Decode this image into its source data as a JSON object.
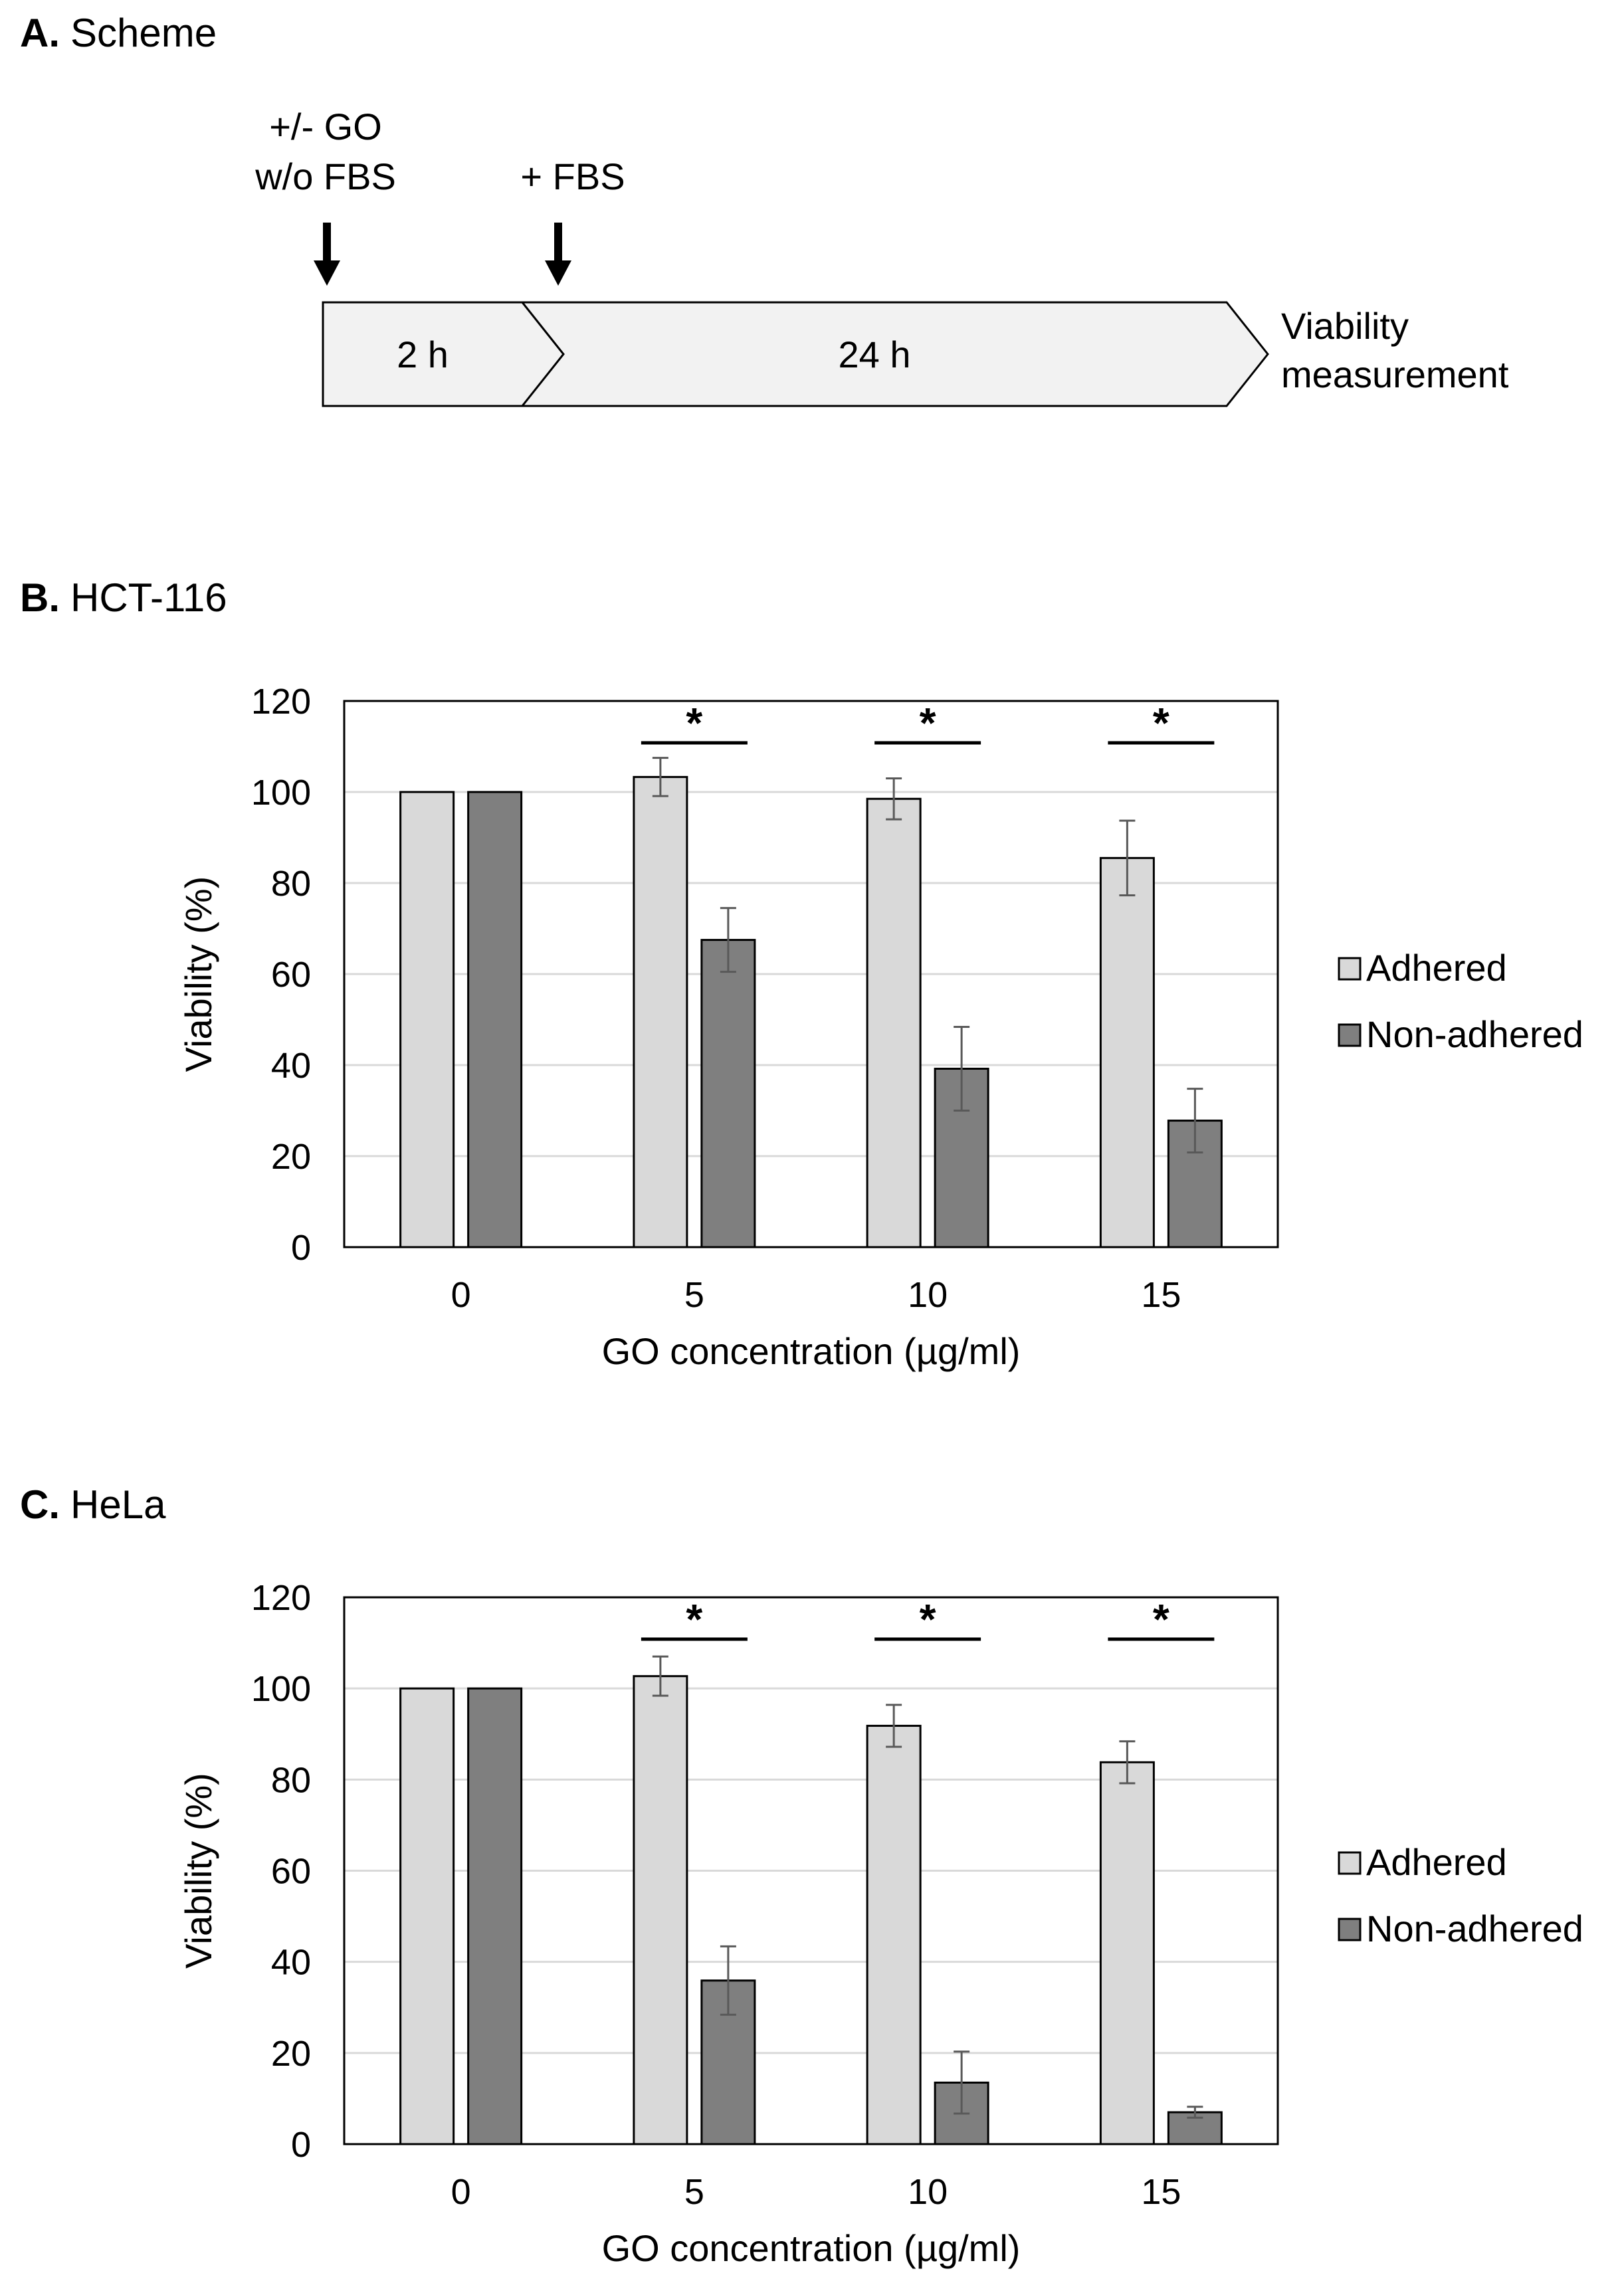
{
  "panel_a": {
    "letter": "A.",
    "title": "Scheme",
    "step1_line1": "+/- GO",
    "step1_line2": "w/o FBS",
    "step2": "+ FBS",
    "phase1": "2 h",
    "phase2": "24 h",
    "end_line1": "Viability",
    "end_line2": "measurement"
  },
  "chart_data": [
    {
      "type": "bar",
      "panel_letter": "B.",
      "title": "HCT-116",
      "categories": [
        "0",
        "5",
        "10",
        "15"
      ],
      "series": [
        {
          "name": "Adhered",
          "color": "#d9d9d9",
          "values": [
            100,
            103.3,
            98.5,
            85.5
          ],
          "errors": [
            0,
            4.2,
            4.5,
            8.2
          ]
        },
        {
          "name": "Non-adhered",
          "color": "#7f7f7f",
          "values": [
            100,
            67.5,
            39.2,
            27.8
          ],
          "errors": [
            0,
            7,
            9.2,
            7
          ]
        }
      ],
      "significance": [
        {
          "category": "5",
          "label": "*"
        },
        {
          "category": "10",
          "label": "*"
        },
        {
          "category": "15",
          "label": "*"
        }
      ],
      "xlabel": "GO concentration (µg/ml)",
      "ylabel": "Viability (%)",
      "ylim": [
        0,
        120
      ],
      "yticks": [
        "0",
        "20",
        "40",
        "60",
        "80",
        "100",
        "120"
      ],
      "grid": true,
      "legend": "right"
    },
    {
      "type": "bar",
      "panel_letter": "C.",
      "title": "HeLa",
      "categories": [
        "0",
        "5",
        "10",
        "15"
      ],
      "series": [
        {
          "name": "Adhered",
          "color": "#d9d9d9",
          "values": [
            100,
            102.7,
            91.8,
            83.8
          ],
          "errors": [
            0,
            4.3,
            4.6,
            4.6
          ]
        },
        {
          "name": "Non-adhered",
          "color": "#7f7f7f",
          "values": [
            100,
            35.9,
            13.5,
            7
          ],
          "errors": [
            0,
            7.5,
            6.8,
            1.2
          ]
        }
      ],
      "significance": [
        {
          "category": "5",
          "label": "*"
        },
        {
          "category": "10",
          "label": "*"
        },
        {
          "category": "15",
          "label": "*"
        }
      ],
      "xlabel": "GO concentration (µg/ml)",
      "ylabel": "Viability (%)",
      "ylim": [
        0,
        120
      ],
      "yticks": [
        "0",
        "20",
        "40",
        "60",
        "80",
        "100",
        "120"
      ],
      "grid": true,
      "legend": "right"
    }
  ]
}
